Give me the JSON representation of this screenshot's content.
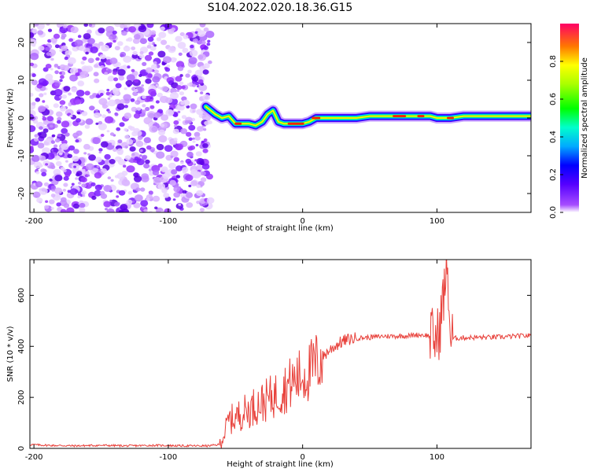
{
  "title": "S104.2022.020.18.36.G15",
  "chart_data": [
    {
      "type": "heatmap",
      "xlabel": "Height of straight line (km)",
      "ylabel": "Frequency (Hz)",
      "xlim": [
        -203,
        170
      ],
      "ylim": [
        -25,
        25
      ],
      "xticks": [
        -200,
        -100,
        0,
        100
      ],
      "yticks": [
        -20,
        -10,
        0,
        10,
        20
      ],
      "noise_region_x": [
        -203,
        -72
      ],
      "signal_track": {
        "x": [
          -72,
          -65,
          -60,
          -55,
          -50,
          -45,
          -40,
          -35,
          -30,
          -26,
          -22,
          -18,
          -14,
          -10,
          -5,
          0,
          5,
          10,
          15,
          20,
          30,
          40,
          50,
          60,
          70,
          80,
          90,
          95,
          100,
          103,
          110,
          120,
          130,
          140,
          150,
          160,
          170
        ],
        "y": [
          3,
          1,
          0,
          0.5,
          -1.5,
          -1.5,
          -1.5,
          -2,
          -1,
          1,
          2,
          -1,
          -1.5,
          -1.5,
          -1.5,
          -1.5,
          -1,
          0,
          0,
          0,
          0,
          0,
          0.5,
          0.5,
          0.5,
          0.5,
          0.5,
          0.5,
          0,
          0,
          0,
          0.5,
          0.5,
          0.5,
          0.5,
          0.5,
          0.5
        ]
      },
      "colorbar": {
        "label": "Normalized spectral amplitude",
        "range": [
          0,
          1
        ],
        "ticks": [
          "0.0",
          "0.2",
          "0.4",
          "0.6",
          "0.8"
        ]
      }
    },
    {
      "type": "line",
      "xlabel": "Height of straight line (km)",
      "ylabel": "SNR (10 * v/v)",
      "xlim": [
        -203,
        170
      ],
      "ylim": [
        0,
        740
      ],
      "xticks": [
        -200,
        -100,
        0,
        100
      ],
      "yticks": [
        0,
        200,
        400,
        600
      ],
      "series": [
        {
          "color": "#e8403a",
          "x": [
            -203,
            -190,
            -170,
            -150,
            -130,
            -110,
            -90,
            -70,
            -62,
            -58,
            -55,
            -50,
            -45,
            -40,
            -35,
            -30,
            -25,
            -20,
            -15,
            -10,
            -5,
            0,
            5,
            10,
            15,
            20,
            25,
            30,
            35,
            40,
            50,
            60,
            70,
            80,
            85,
            90,
            95,
            100,
            102,
            104,
            106,
            108,
            110,
            115,
            120,
            130,
            140,
            150,
            160,
            170
          ],
          "y": [
            15,
            12,
            10,
            12,
            10,
            12,
            10,
            10,
            15,
            60,
            110,
            120,
            140,
            150,
            170,
            180,
            195,
            210,
            230,
            250,
            270,
            285,
            300,
            330,
            360,
            385,
            405,
            420,
            428,
            432,
            435,
            440,
            440,
            442,
            445,
            445,
            440,
            430,
            470,
            560,
            640,
            700,
            430,
            432,
            434,
            435,
            435,
            437,
            440,
            442
          ]
        }
      ]
    }
  ]
}
